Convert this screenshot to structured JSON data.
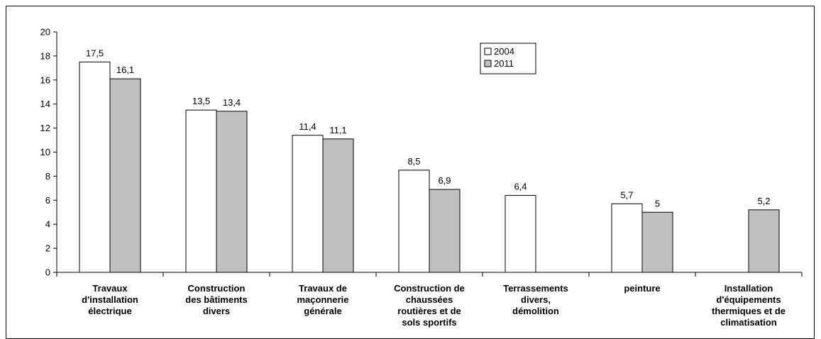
{
  "chart_data": {
    "type": "bar",
    "categories": [
      [
        "Travaux",
        "d'installation",
        "électrique"
      ],
      [
        "Construction",
        "des bâtiments",
        "divers"
      ],
      [
        "Travaux de",
        "maçonnerie",
        "générale"
      ],
      [
        "Construction de",
        "chaussées",
        "routières et de",
        "sols sportifs"
      ],
      [
        "Terrassements",
        "divers,",
        "démolition"
      ],
      [
        "peinture"
      ],
      [
        "Installation",
        "d'équipements",
        "thermiques et de",
        "climatisation"
      ]
    ],
    "series": [
      {
        "name": "2004",
        "color": "#ffffff",
        "values": [
          17.5,
          13.5,
          11.4,
          8.5,
          6.4,
          5.7,
          null
        ],
        "labels": [
          "17,5",
          "13,5",
          "11,4",
          "8,5",
          "6,4",
          "5,7",
          ""
        ]
      },
      {
        "name": "2011",
        "color": "#c0c0c0",
        "values": [
          16.1,
          13.4,
          11.1,
          6.9,
          null,
          5,
          5.2
        ],
        "labels": [
          "16,1",
          "13,4",
          "11,1",
          "6,9",
          "",
          "5",
          "5,2"
        ]
      }
    ],
    "ylim": [
      0,
      20
    ],
    "yticks": [
      0,
      2,
      4,
      6,
      8,
      10,
      12,
      14,
      16,
      18,
      20
    ],
    "legend": "top-center",
    "grid": false,
    "title": "",
    "xlabel": "",
    "ylabel": ""
  }
}
